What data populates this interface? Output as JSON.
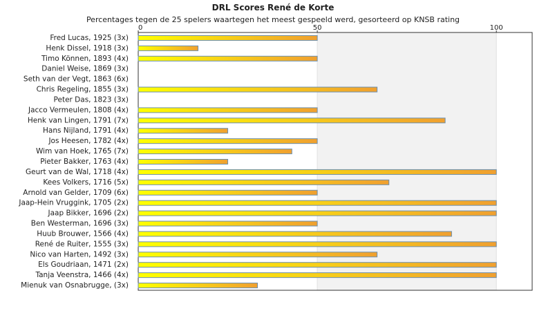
{
  "chart_data": {
    "type": "bar",
    "orientation": "horizontal",
    "title": "DRL Scores René de Korte",
    "subtitle": "Percentages tegen de 25 spelers waartegen het meest gespeeld werd, gesorteerd op KNSB rating",
    "xlim": [
      0,
      110
    ],
    "xticks": [
      0,
      50,
      100
    ],
    "xtick_labels": [
      "0",
      "50",
      "100"
    ],
    "xlabel": "",
    "ylabel": "",
    "grid": true,
    "legend": "none",
    "colors": {
      "bar_light": "#ffff00",
      "bar_dark": "#f0a030",
      "bar_edge": "#6a8fb0",
      "band": "#f2f2f2"
    },
    "categories": [
      "Fred Lucas, 1925 (3x)",
      "Henk Dissel, 1918 (3x)",
      "Timo Können, 1893 (4x)",
      "Daniel Weise, 1869 (3x)",
      "Seth van der Vegt, 1863 (6x)",
      "Chris Regeling, 1855 (3x)",
      "Peter Das, 1823 (3x)",
      "Jacco Vermeulen, 1808 (4x)",
      "Henk van Lingen, 1791 (7x)",
      "Hans Nijland, 1791 (4x)",
      "Jos Heesen, 1782 (4x)",
      "Wim van Hoek, 1765 (7x)",
      "Pieter Bakker, 1763 (4x)",
      "Geurt van de Wal, 1718 (4x)",
      "Kees Volkers, 1716 (5x)",
      "Arnold van Gelder, 1709 (6x)",
      "Jaap-Hein Vruggink, 1705 (2x)",
      "Jaap Bikker, 1696 (2x)",
      "Ben Westerman, 1696 (3x)",
      "Huub Brouwer, 1566 (4x)",
      "René de Ruiter, 1555 (3x)",
      "Nico van Harten, 1492 (3x)",
      "Els Goudriaan, 1471 (2x)",
      "Tanja Veenstra, 1466 (4x)",
      "Mienuk van Osnabrugge, (3x)"
    ],
    "values": [
      50,
      16.7,
      50,
      0,
      0,
      66.7,
      0,
      50,
      85.7,
      25,
      50,
      42.9,
      25,
      100,
      70,
      50,
      100,
      100,
      50,
      87.5,
      100,
      66.7,
      100,
      100,
      33.3
    ]
  }
}
